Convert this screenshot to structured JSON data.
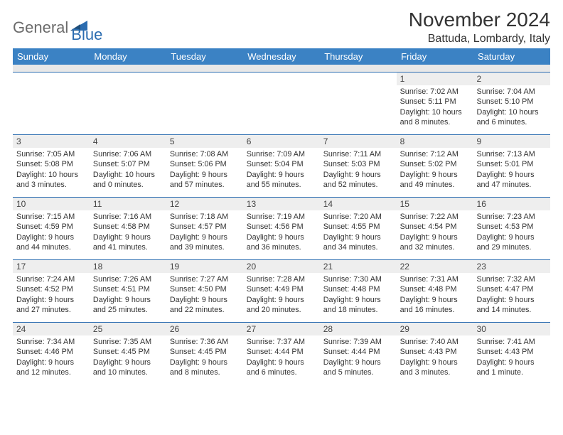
{
  "logo": {
    "part1": "General",
    "part2": "Blue"
  },
  "title": "November 2024",
  "location": "Battuda, Lombardy, Italy",
  "colors": {
    "header_bg": "#3b82c4",
    "header_fg": "#ffffff",
    "daynum_bg": "#eeeeee",
    "rule": "#2b6cb0",
    "logo_accent": "#2b6cb0",
    "logo_gray": "#6b6b6b",
    "text": "#333333"
  },
  "fonts": {
    "title_pt": 28,
    "location_pt": 16,
    "weekday_pt": 13,
    "daynum_pt": 12,
    "body_pt": 10.8
  },
  "weekdays": [
    "Sunday",
    "Monday",
    "Tuesday",
    "Wednesday",
    "Thursday",
    "Friday",
    "Saturday"
  ],
  "calendar": {
    "type": "table",
    "columns": 7,
    "rows": 5,
    "first_weekday_index": 5,
    "days": [
      {
        "n": 1,
        "sunrise": "7:02 AM",
        "sunset": "5:11 PM",
        "daylight": "10 hours and 8 minutes."
      },
      {
        "n": 2,
        "sunrise": "7:04 AM",
        "sunset": "5:10 PM",
        "daylight": "10 hours and 6 minutes."
      },
      {
        "n": 3,
        "sunrise": "7:05 AM",
        "sunset": "5:08 PM",
        "daylight": "10 hours and 3 minutes."
      },
      {
        "n": 4,
        "sunrise": "7:06 AM",
        "sunset": "5:07 PM",
        "daylight": "10 hours and 0 minutes."
      },
      {
        "n": 5,
        "sunrise": "7:08 AM",
        "sunset": "5:06 PM",
        "daylight": "9 hours and 57 minutes."
      },
      {
        "n": 6,
        "sunrise": "7:09 AM",
        "sunset": "5:04 PM",
        "daylight": "9 hours and 55 minutes."
      },
      {
        "n": 7,
        "sunrise": "7:11 AM",
        "sunset": "5:03 PM",
        "daylight": "9 hours and 52 minutes."
      },
      {
        "n": 8,
        "sunrise": "7:12 AM",
        "sunset": "5:02 PM",
        "daylight": "9 hours and 49 minutes."
      },
      {
        "n": 9,
        "sunrise": "7:13 AM",
        "sunset": "5:01 PM",
        "daylight": "9 hours and 47 minutes."
      },
      {
        "n": 10,
        "sunrise": "7:15 AM",
        "sunset": "4:59 PM",
        "daylight": "9 hours and 44 minutes."
      },
      {
        "n": 11,
        "sunrise": "7:16 AM",
        "sunset": "4:58 PM",
        "daylight": "9 hours and 41 minutes."
      },
      {
        "n": 12,
        "sunrise": "7:18 AM",
        "sunset": "4:57 PM",
        "daylight": "9 hours and 39 minutes."
      },
      {
        "n": 13,
        "sunrise": "7:19 AM",
        "sunset": "4:56 PM",
        "daylight": "9 hours and 36 minutes."
      },
      {
        "n": 14,
        "sunrise": "7:20 AM",
        "sunset": "4:55 PM",
        "daylight": "9 hours and 34 minutes."
      },
      {
        "n": 15,
        "sunrise": "7:22 AM",
        "sunset": "4:54 PM",
        "daylight": "9 hours and 32 minutes."
      },
      {
        "n": 16,
        "sunrise": "7:23 AM",
        "sunset": "4:53 PM",
        "daylight": "9 hours and 29 minutes."
      },
      {
        "n": 17,
        "sunrise": "7:24 AM",
        "sunset": "4:52 PM",
        "daylight": "9 hours and 27 minutes."
      },
      {
        "n": 18,
        "sunrise": "7:26 AM",
        "sunset": "4:51 PM",
        "daylight": "9 hours and 25 minutes."
      },
      {
        "n": 19,
        "sunrise": "7:27 AM",
        "sunset": "4:50 PM",
        "daylight": "9 hours and 22 minutes."
      },
      {
        "n": 20,
        "sunrise": "7:28 AM",
        "sunset": "4:49 PM",
        "daylight": "9 hours and 20 minutes."
      },
      {
        "n": 21,
        "sunrise": "7:30 AM",
        "sunset": "4:48 PM",
        "daylight": "9 hours and 18 minutes."
      },
      {
        "n": 22,
        "sunrise": "7:31 AM",
        "sunset": "4:48 PM",
        "daylight": "9 hours and 16 minutes."
      },
      {
        "n": 23,
        "sunrise": "7:32 AM",
        "sunset": "4:47 PM",
        "daylight": "9 hours and 14 minutes."
      },
      {
        "n": 24,
        "sunrise": "7:34 AM",
        "sunset": "4:46 PM",
        "daylight": "9 hours and 12 minutes."
      },
      {
        "n": 25,
        "sunrise": "7:35 AM",
        "sunset": "4:45 PM",
        "daylight": "9 hours and 10 minutes."
      },
      {
        "n": 26,
        "sunrise": "7:36 AM",
        "sunset": "4:45 PM",
        "daylight": "9 hours and 8 minutes."
      },
      {
        "n": 27,
        "sunrise": "7:37 AM",
        "sunset": "4:44 PM",
        "daylight": "9 hours and 6 minutes."
      },
      {
        "n": 28,
        "sunrise": "7:39 AM",
        "sunset": "4:44 PM",
        "daylight": "9 hours and 5 minutes."
      },
      {
        "n": 29,
        "sunrise": "7:40 AM",
        "sunset": "4:43 PM",
        "daylight": "9 hours and 3 minutes."
      },
      {
        "n": 30,
        "sunrise": "7:41 AM",
        "sunset": "4:43 PM",
        "daylight": "9 hours and 1 minute."
      }
    ]
  },
  "labels": {
    "sunrise_prefix": "Sunrise: ",
    "sunset_prefix": "Sunset: ",
    "daylight_prefix": "Daylight: "
  }
}
